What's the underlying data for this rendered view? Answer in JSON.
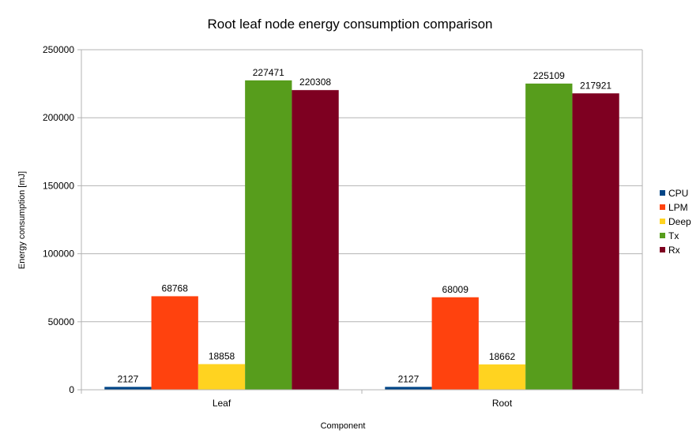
{
  "chart_data": {
    "type": "bar",
    "title": "Root leaf node energy consumption comparison",
    "xlabel": "Component",
    "ylabel": "Energy consumption [mJ]",
    "categories": [
      "Leaf",
      "Root"
    ],
    "ylim": [
      0,
      250000
    ],
    "yticks": [
      0,
      50000,
      100000,
      150000,
      200000,
      250000
    ],
    "grid": "horizontal",
    "legend": "right",
    "series": [
      {
        "name": "CPU",
        "color": "#004586",
        "values": [
          2127,
          2127
        ]
      },
      {
        "name": "LPM",
        "color": "#ff420e",
        "values": [
          68768,
          68009
        ]
      },
      {
        "name": "Deep",
        "color": "#ffd320",
        "values": [
          18858,
          18662
        ]
      },
      {
        "name": "Tx",
        "color": "#579d1c",
        "values": [
          227471,
          225109
        ]
      },
      {
        "name": "Rx",
        "color": "#7e0021",
        "values": [
          220308,
          217921
        ]
      }
    ]
  }
}
